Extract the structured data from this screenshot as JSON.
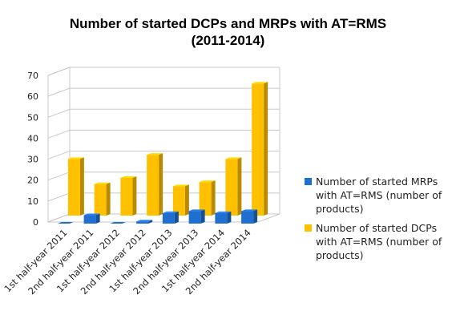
{
  "chart_data": {
    "type": "bar",
    "title": "Number of started DCPs and MRPs with AT=RMS",
    "subtitle": "(2011-2014)",
    "categories": [
      "1st half-year 2011",
      "2nd half-year 2011",
      "1st half-year 2012",
      "2nd half-year 2012",
      "1st half-year 2013",
      "2nd half-year 2013",
      "1st half-year 2014",
      "2nd half-year 2014"
    ],
    "series": [
      {
        "name": "Number of started MRPs with AT=RMS (number of products)",
        "values": [
          0,
          4,
          0,
          1,
          5,
          6,
          5,
          6
        ],
        "color": "#1f6fd1"
      },
      {
        "name": "Number of started DCPs with AT=RMS (number of products)",
        "values": [
          27,
          15,
          18,
          29,
          14,
          16,
          27,
          63
        ],
        "color": "#ffc000"
      }
    ],
    "yticks": [
      0,
      10,
      20,
      30,
      40,
      50,
      60,
      70
    ],
    "ylim": [
      0,
      70
    ],
    "grid": true,
    "legend_position": "right",
    "style": "3d-clustered-column"
  }
}
